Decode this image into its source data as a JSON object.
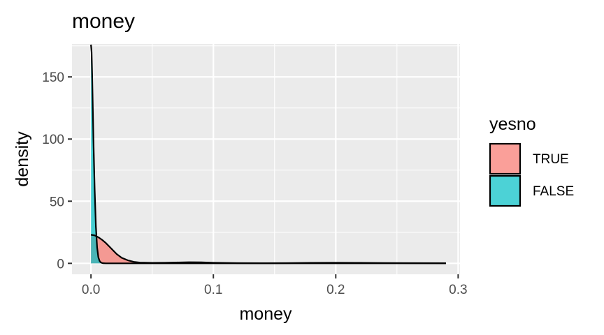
{
  "chart_data": {
    "type": "area",
    "title": "money",
    "xlabel": "money",
    "ylabel": "density",
    "xlim": [
      -0.0155,
      0.3015
    ],
    "ylim": [
      -8.8,
      176.5
    ],
    "xticks": [
      0.0,
      0.1,
      0.2,
      0.3
    ],
    "xtick_labels": [
      "0.0",
      "0.1",
      "0.2",
      "0.3"
    ],
    "yticks": [
      0,
      50,
      100,
      150
    ],
    "ytick_labels": [
      "0",
      "50",
      "100",
      "150"
    ],
    "grid": true,
    "legend": {
      "title": "yesno",
      "position": "right",
      "entries": [
        {
          "label": "TRUE",
          "color": "#F8766D"
        },
        {
          "label": "FALSE",
          "color": "#00BFC4"
        }
      ]
    },
    "series": [
      {
        "name": "TRUE",
        "color": "#F8766D",
        "x": [
          0.0,
          0.003,
          0.006,
          0.009,
          0.012,
          0.015,
          0.018,
          0.021,
          0.025,
          0.03,
          0.035,
          0.04,
          0.05,
          0.06,
          0.07,
          0.08,
          0.09,
          0.1,
          0.12,
          0.14,
          0.16,
          0.18,
          0.2,
          0.22,
          0.24,
          0.26,
          0.29
        ],
        "y": [
          23,
          22.5,
          21,
          19,
          16.5,
          13.5,
          10.5,
          7.5,
          4.5,
          2.5,
          1.2,
          0.6,
          0.4,
          0.5,
          0.7,
          0.9,
          0.8,
          0.5,
          0.2,
          0.1,
          0.2,
          0.4,
          0.5,
          0.4,
          0.3,
          0.2,
          0.1
        ]
      },
      {
        "name": "FALSE",
        "color": "#00BFC4",
        "x": [
          0.0,
          0.0005,
          0.001,
          0.0015,
          0.002,
          0.003,
          0.004,
          0.005,
          0.006,
          0.007,
          0.008,
          0.009,
          0.01,
          0.012,
          0.015,
          0.29
        ],
        "y": [
          176,
          170,
          150,
          125,
          100,
          60,
          30,
          13,
          5,
          2,
          0.8,
          0.3,
          0.1,
          0,
          0,
          0
        ]
      }
    ]
  }
}
